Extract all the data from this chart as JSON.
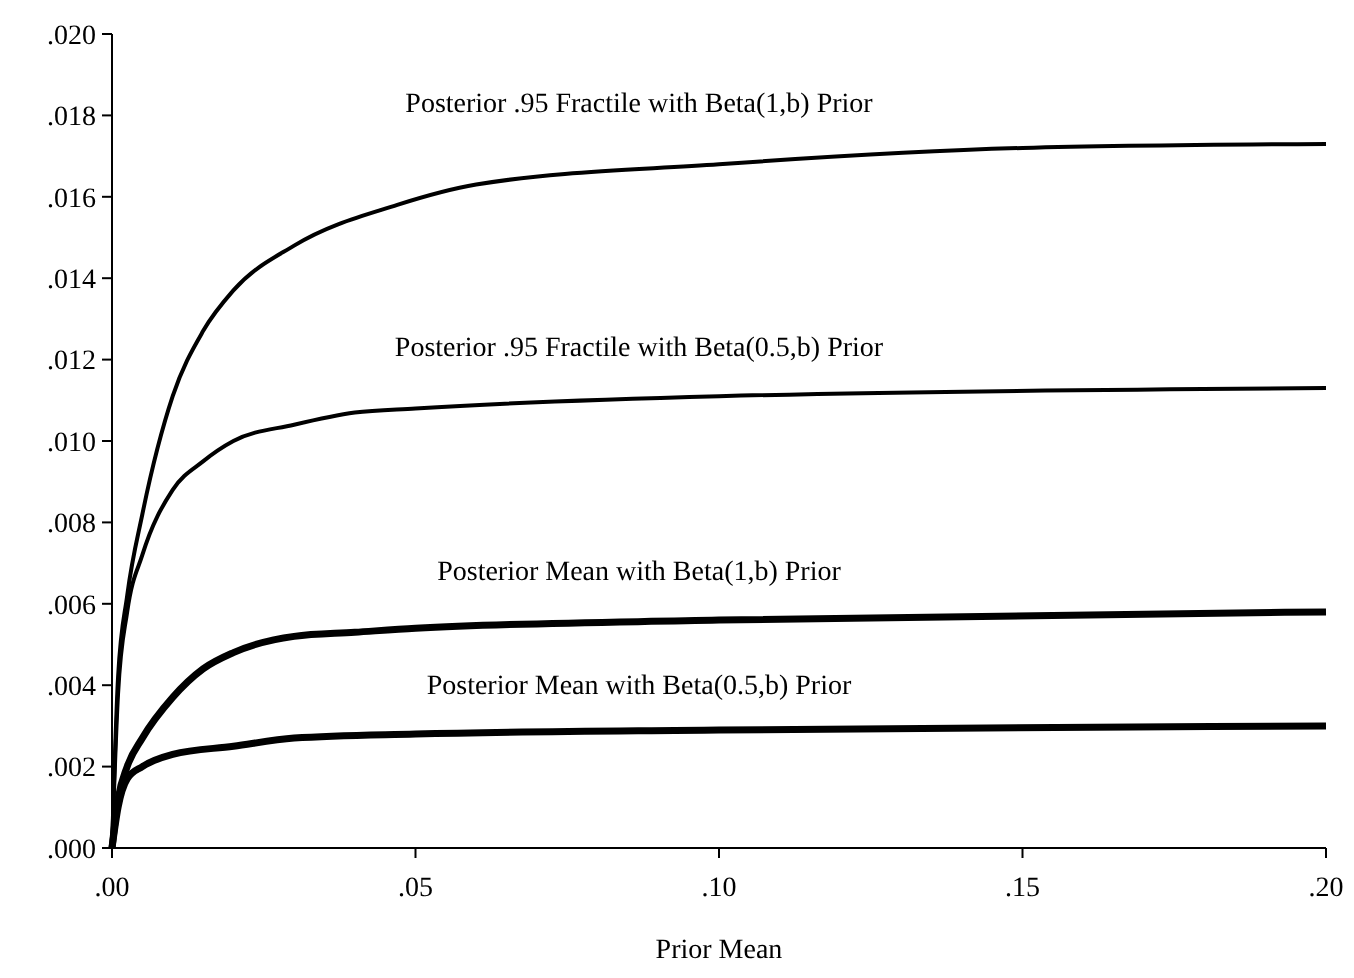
{
  "chart_data": {
    "type": "line",
    "xlabel": "Prior Mean",
    "xlim": [
      0,
      0.2
    ],
    "xticks": [
      {
        "value": 0,
        "label": ".00"
      },
      {
        "value": 0.05,
        "label": ".05"
      },
      {
        "value": 0.1,
        "label": ".10"
      },
      {
        "value": 0.15,
        "label": ".15"
      },
      {
        "value": 0.2,
        "label": ".20"
      }
    ],
    "ylim": [
      0,
      0.02
    ],
    "yticks": [
      {
        "value": 0,
        "label": ".000"
      },
      {
        "value": 0.002,
        "label": ".002"
      },
      {
        "value": 0.004,
        "label": ".004"
      },
      {
        "value": 0.006,
        "label": ".006"
      },
      {
        "value": 0.008,
        "label": ".008"
      },
      {
        "value": 0.01,
        "label": ".010"
      },
      {
        "value": 0.012,
        "label": ".012"
      },
      {
        "value": 0.014,
        "label": ".014"
      },
      {
        "value": 0.016,
        "label": ".016"
      },
      {
        "value": 0.018,
        "label": ".018"
      },
      {
        "value": 0.02,
        "label": ".020"
      }
    ],
    "grid": false,
    "marker": "none",
    "line_style": "solid",
    "series": [
      {
        "name": "Posterior .95 Fractile with Beta(1,b) Prior",
        "color": "#000000",
        "x": [
          0,
          0.001,
          0.0025,
          0.005,
          0.01,
          0.015,
          0.02,
          0.03,
          0.047,
          0.06,
          0.1,
          0.15,
          0.2
        ],
        "values": [
          0,
          0.0042,
          0.0062,
          0.0082,
          0.0111,
          0.0127,
          0.0137,
          0.0148,
          0.0158,
          0.0163,
          0.0168,
          0.0172,
          0.0173
        ]
      },
      {
        "name": "Posterior .95 Fractile with Beta(0.5,b) Prior",
        "color": "#000000",
        "x": [
          0,
          0.001,
          0.0025,
          0.005,
          0.01,
          0.015,
          0.02,
          0.03,
          0.04,
          0.05,
          0.1,
          0.2
        ],
        "values": [
          0,
          0.0038,
          0.0058,
          0.0072,
          0.0088,
          0.0095,
          0.01,
          0.0104,
          0.0107,
          0.0108,
          0.0111,
          0.0113
        ]
      },
      {
        "name": "Posterior Mean with Beta(1,b) Prior",
        "color": "#000000",
        "x": [
          0,
          0.001,
          0.0025,
          0.005,
          0.01,
          0.015,
          0.02,
          0.03,
          0.04,
          0.05,
          0.1,
          0.2
        ],
        "values": [
          0,
          0.0012,
          0.002,
          0.0027,
          0.0037,
          0.0044,
          0.0048,
          0.0052,
          0.0053,
          0.0054,
          0.0056,
          0.0058
        ]
      },
      {
        "name": "Posterior Mean with Beta(0.5,b) Prior",
        "color": "#000000",
        "x": [
          0,
          0.001,
          0.0025,
          0.005,
          0.01,
          0.02,
          0.03,
          0.05,
          0.1,
          0.2
        ],
        "values": [
          0,
          0.001,
          0.0017,
          0.002,
          0.0023,
          0.0025,
          0.0027,
          0.0028,
          0.0029,
          0.003
        ]
      }
    ]
  }
}
